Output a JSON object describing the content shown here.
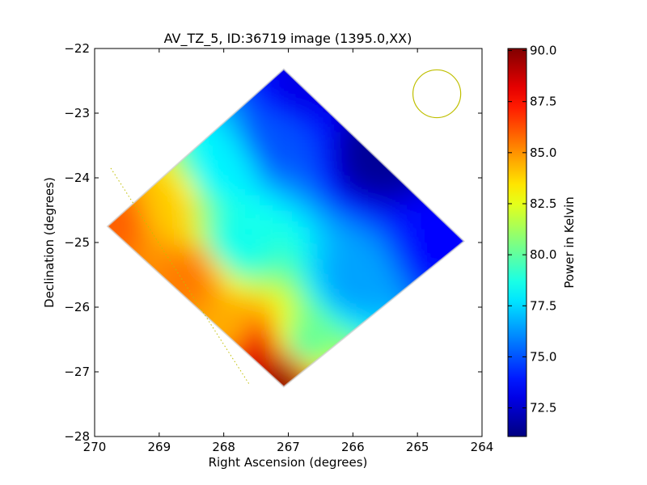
{
  "chart_data": {
    "type": "heatmap",
    "title": "AV_TZ_5, ID:36719 image (1395.0,XX)",
    "xlabel": "Right Ascension (degrees)",
    "ylabel": "Declination (degrees)",
    "xlim": [
      270,
      264
    ],
    "ylim": [
      -28,
      -22
    ],
    "xticks": [
      270,
      269,
      268,
      267,
      266,
      265,
      264
    ],
    "yticks": [
      -22,
      -23,
      -24,
      -25,
      -26,
      -27,
      -28
    ],
    "xtick_labels": [
      "270",
      "269",
      "268",
      "267",
      "266",
      "265",
      "264"
    ],
    "ytick_labels": [
      "−22",
      "−23",
      "−24",
      "−25",
      "−26",
      "−27",
      "−28"
    ],
    "grid": false,
    "colorbar": {
      "label": "Power in Kelvin",
      "colormap": "jet",
      "range": [
        71.1,
        90.1
      ],
      "ticks": [
        72.5,
        75.0,
        77.5,
        80.0,
        82.5,
        85.0,
        87.5,
        90.0
      ],
      "tick_labels": [
        "72.5",
        "75.0",
        "77.5",
        "80.0",
        "82.5",
        "85.0",
        "87.5",
        "90.0"
      ]
    },
    "data_footprint": {
      "shape": "diamond",
      "vertices_ra_dec": [
        [
          267.07,
          -22.32
        ],
        [
          264.28,
          -24.98
        ],
        [
          267.07,
          -27.23
        ],
        [
          269.8,
          -24.75
        ]
      ]
    },
    "gradient_samples": [
      {
        "ra": 264.6,
        "dec": -25.0,
        "value": 73.5
      },
      {
        "ra": 265.6,
        "dec": -23.6,
        "value": 71.5
      },
      {
        "ra": 266.8,
        "dec": -22.6,
        "value": 73.0
      },
      {
        "ra": 267.2,
        "dec": -23.4,
        "value": 75.0
      },
      {
        "ra": 266.0,
        "dec": -25.6,
        "value": 76.5
      },
      {
        "ra": 268.0,
        "dec": -23.8,
        "value": 78.0
      },
      {
        "ra": 267.8,
        "dec": -25.0,
        "value": 78.5
      },
      {
        "ra": 266.8,
        "dec": -26.6,
        "value": 80.0
      },
      {
        "ra": 269.0,
        "dec": -24.4,
        "value": 84.0
      },
      {
        "ra": 268.5,
        "dec": -25.5,
        "value": 85.5
      },
      {
        "ra": 269.6,
        "dec": -24.6,
        "value": 86.0
      },
      {
        "ra": 268.0,
        "dec": -26.3,
        "value": 84.5
      },
      {
        "ra": 267.4,
        "dec": -26.8,
        "value": 88.5
      },
      {
        "ra": 267.1,
        "dec": -27.1,
        "value": 90.0
      }
    ],
    "annotations": [
      {
        "type": "circle",
        "ra": 264.7,
        "dec": -22.7,
        "radius_deg": 0.37,
        "color": "#bfbf00"
      },
      {
        "type": "dotted-line",
        "points_ra_dec": [
          [
            269.75,
            -23.85
          ],
          [
            267.6,
            -27.2
          ]
        ],
        "color": "#bfbf00"
      }
    ]
  }
}
